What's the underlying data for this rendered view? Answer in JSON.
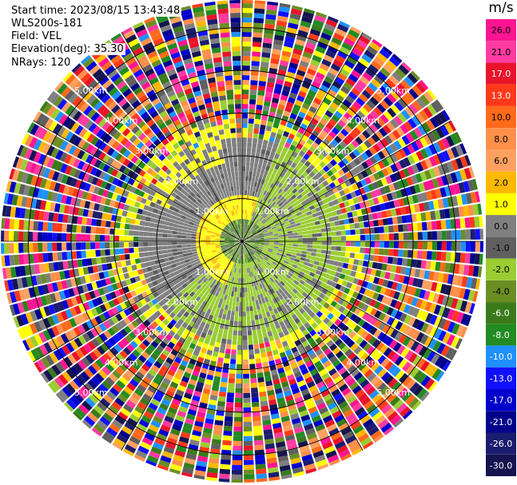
{
  "header": {
    "start_time": "Start time: 2023/08/15 13:43:48",
    "instrument": "WLS200s-181",
    "field": "Field: VEL",
    "elevation": "Elevation(deg): 35.30",
    "nrays": "NRays: 120"
  },
  "colorbar": {
    "unit": "m/s",
    "ticks": [
      "26.0",
      "21.0",
      "17.0",
      "13.0",
      "10.0",
      "8.0",
      "6.0",
      "2.0",
      "1.0",
      "0.0",
      "-1.0",
      "-2.0",
      "-4.0",
      "-6.0",
      "-8.0",
      "-10.0",
      "-13.0",
      "-17.0",
      "-21.0",
      "-26.0",
      "-30.0"
    ],
    "colors": [
      "#ff1493",
      "#ff3aa0",
      "#e8142a",
      "#ff3a1a",
      "#ff6a1a",
      "#ff8f4a",
      "#ffa060",
      "#ffb800",
      "#ffff00",
      "#7f7f7f",
      "#5f5f5f",
      "#9acd32",
      "#6b8e23",
      "#3a7a1a",
      "#228b22",
      "#1e90ff",
      "#1010ff",
      "#0000cd",
      "#00008b",
      "#1c1c6e",
      "#141450"
    ]
  },
  "chart_data": {
    "type": "heatmap",
    "title": "",
    "field": "VEL",
    "unit": "m/s",
    "nrays": 120,
    "elevation_deg": 35.3,
    "range_rings_km": [
      {
        "label": "1.00km",
        "value": 1.0
      },
      {
        "label": "2.00km",
        "value": 2.0
      },
      {
        "label": "3.00km",
        "value": 3.0
      },
      {
        "label": "4.00km",
        "value": 4.0
      },
      {
        "label": "5.00km",
        "value": 5.0
      }
    ],
    "value_range": [
      -30.0,
      26.0
    ],
    "regions": [
      {
        "range_km": [
          0.0,
          0.5
        ],
        "dominant_velocity": "mixed -2 to 2 m/s"
      },
      {
        "range_km": [
          0.5,
          1.0
        ],
        "dominant_velocity": "1 to 2 m/s (yellow) north-west, -2 m/s (green) east"
      },
      {
        "range_km": [
          1.0,
          2.3
        ],
        "dominant_velocity": "0.0 to -1.0 m/s (gray) with -2 m/s green patches"
      },
      {
        "range_km": [
          2.3,
          5.5
        ],
        "dominant_velocity": "noise, full range -30 to 26 m/s"
      }
    ]
  }
}
